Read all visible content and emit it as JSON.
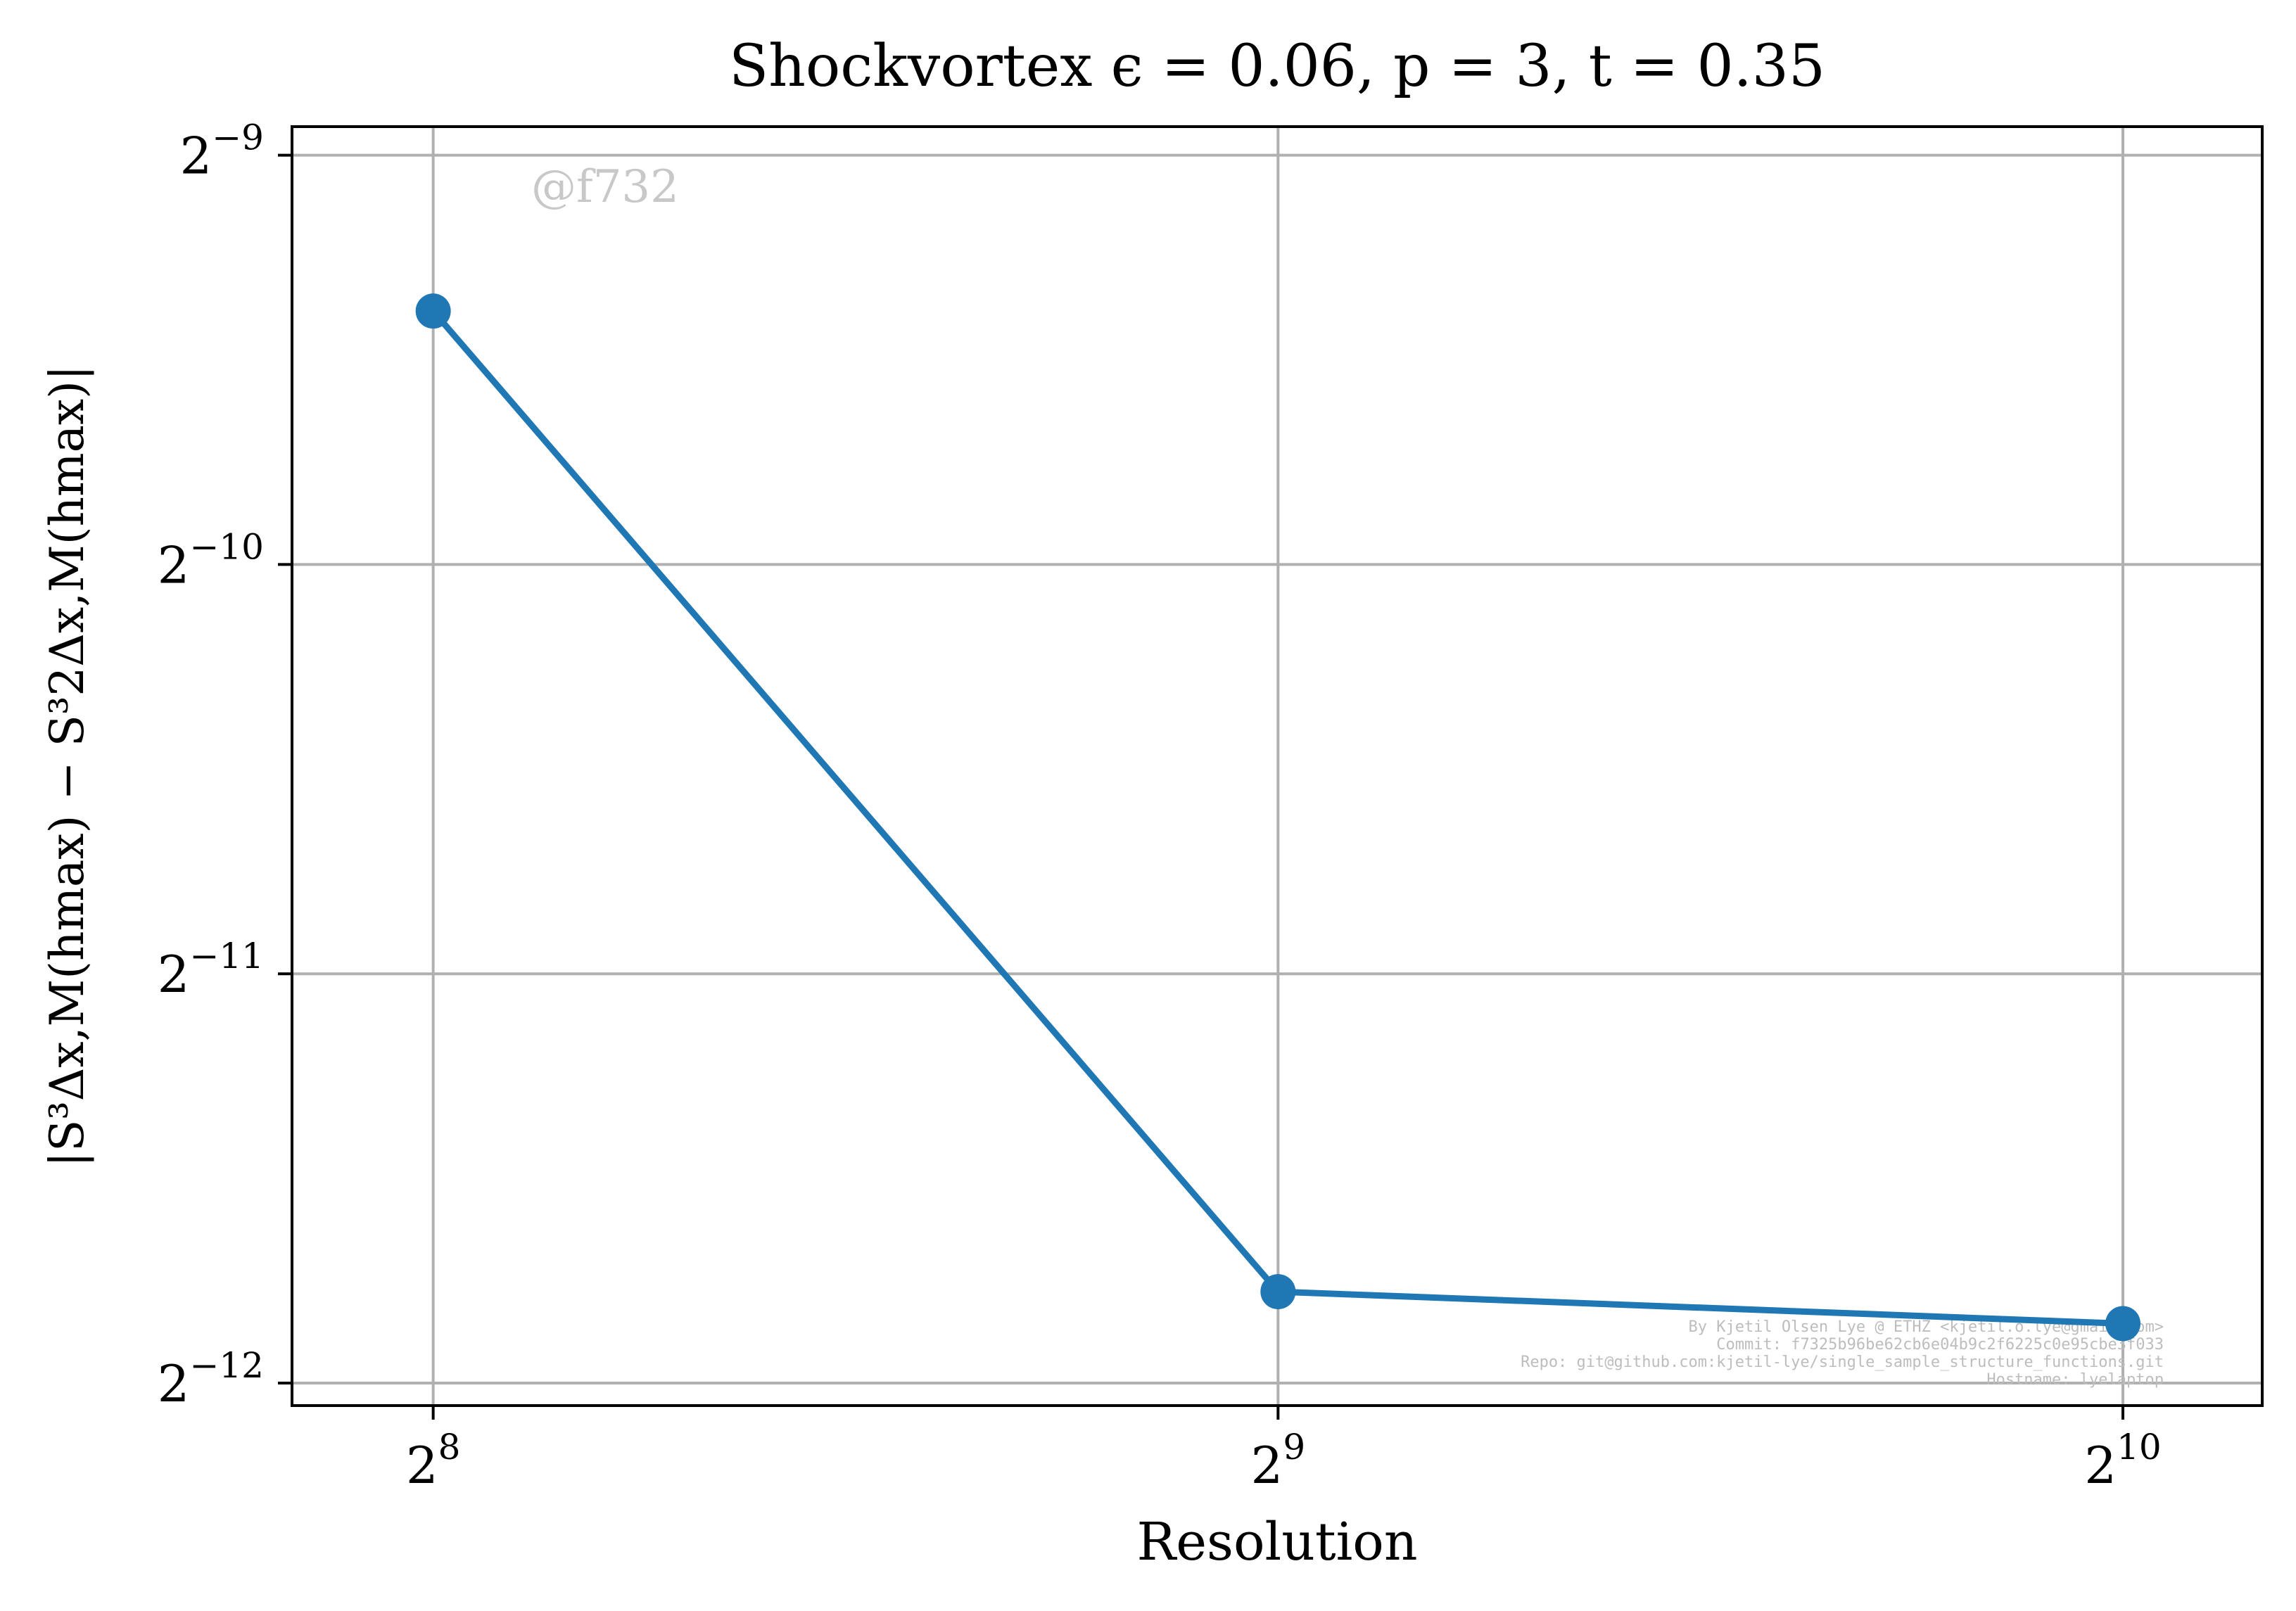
{
  "chart_data": {
    "type": "line",
    "title": "Shockvortex ϵ = 0.06, p = 3, t = 0.35",
    "xlabel": "Resolution",
    "ylabel": "|S³Δx,M(hmax) − S³2Δx,M(hmax)|",
    "xscale": "log2",
    "yscale": "log2",
    "x": [
      256,
      512,
      1024
    ],
    "series": [
      {
        "values": [
          0.0015,
          0.000285,
          0.00027
        ]
      }
    ],
    "xlim": [
      228,
      1148
    ],
    "ylim": [
      0.000235,
      0.00205
    ],
    "xticks": [
      256,
      512,
      1024
    ],
    "xtick_labels": [
      {
        "base": "2",
        "exp": "8"
      },
      {
        "base": "2",
        "exp": "9"
      },
      {
        "base": "2",
        "exp": "10"
      }
    ],
    "yticks": [
      0.000244140625,
      0.00048828125,
      0.0009765625,
      0.001953125
    ],
    "ytick_labels": [
      {
        "base": "2",
        "exp": "−12"
      },
      {
        "base": "2",
        "exp": "−11"
      },
      {
        "base": "2",
        "exp": "−10"
      },
      {
        "base": "2",
        "exp": "−9"
      }
    ],
    "grid": true,
    "colors": {
      "series": "#1f77b4",
      "grid": "#b0b0b0",
      "watermark": "#c8c8c8"
    }
  },
  "annotations": {
    "tag": "@f732",
    "credits": [
      "By Kjetil Olsen Lye @ ETHZ <kjetil.o.lye@gmail.com>",
      "Commit: f7325b96be62cb6e04b9c2f6225c0e95cbe3f033",
      "Repo: git@github.com:kjetil-lye/single_sample_structure_functions.git",
      "Hostname: lyelaptop"
    ]
  }
}
